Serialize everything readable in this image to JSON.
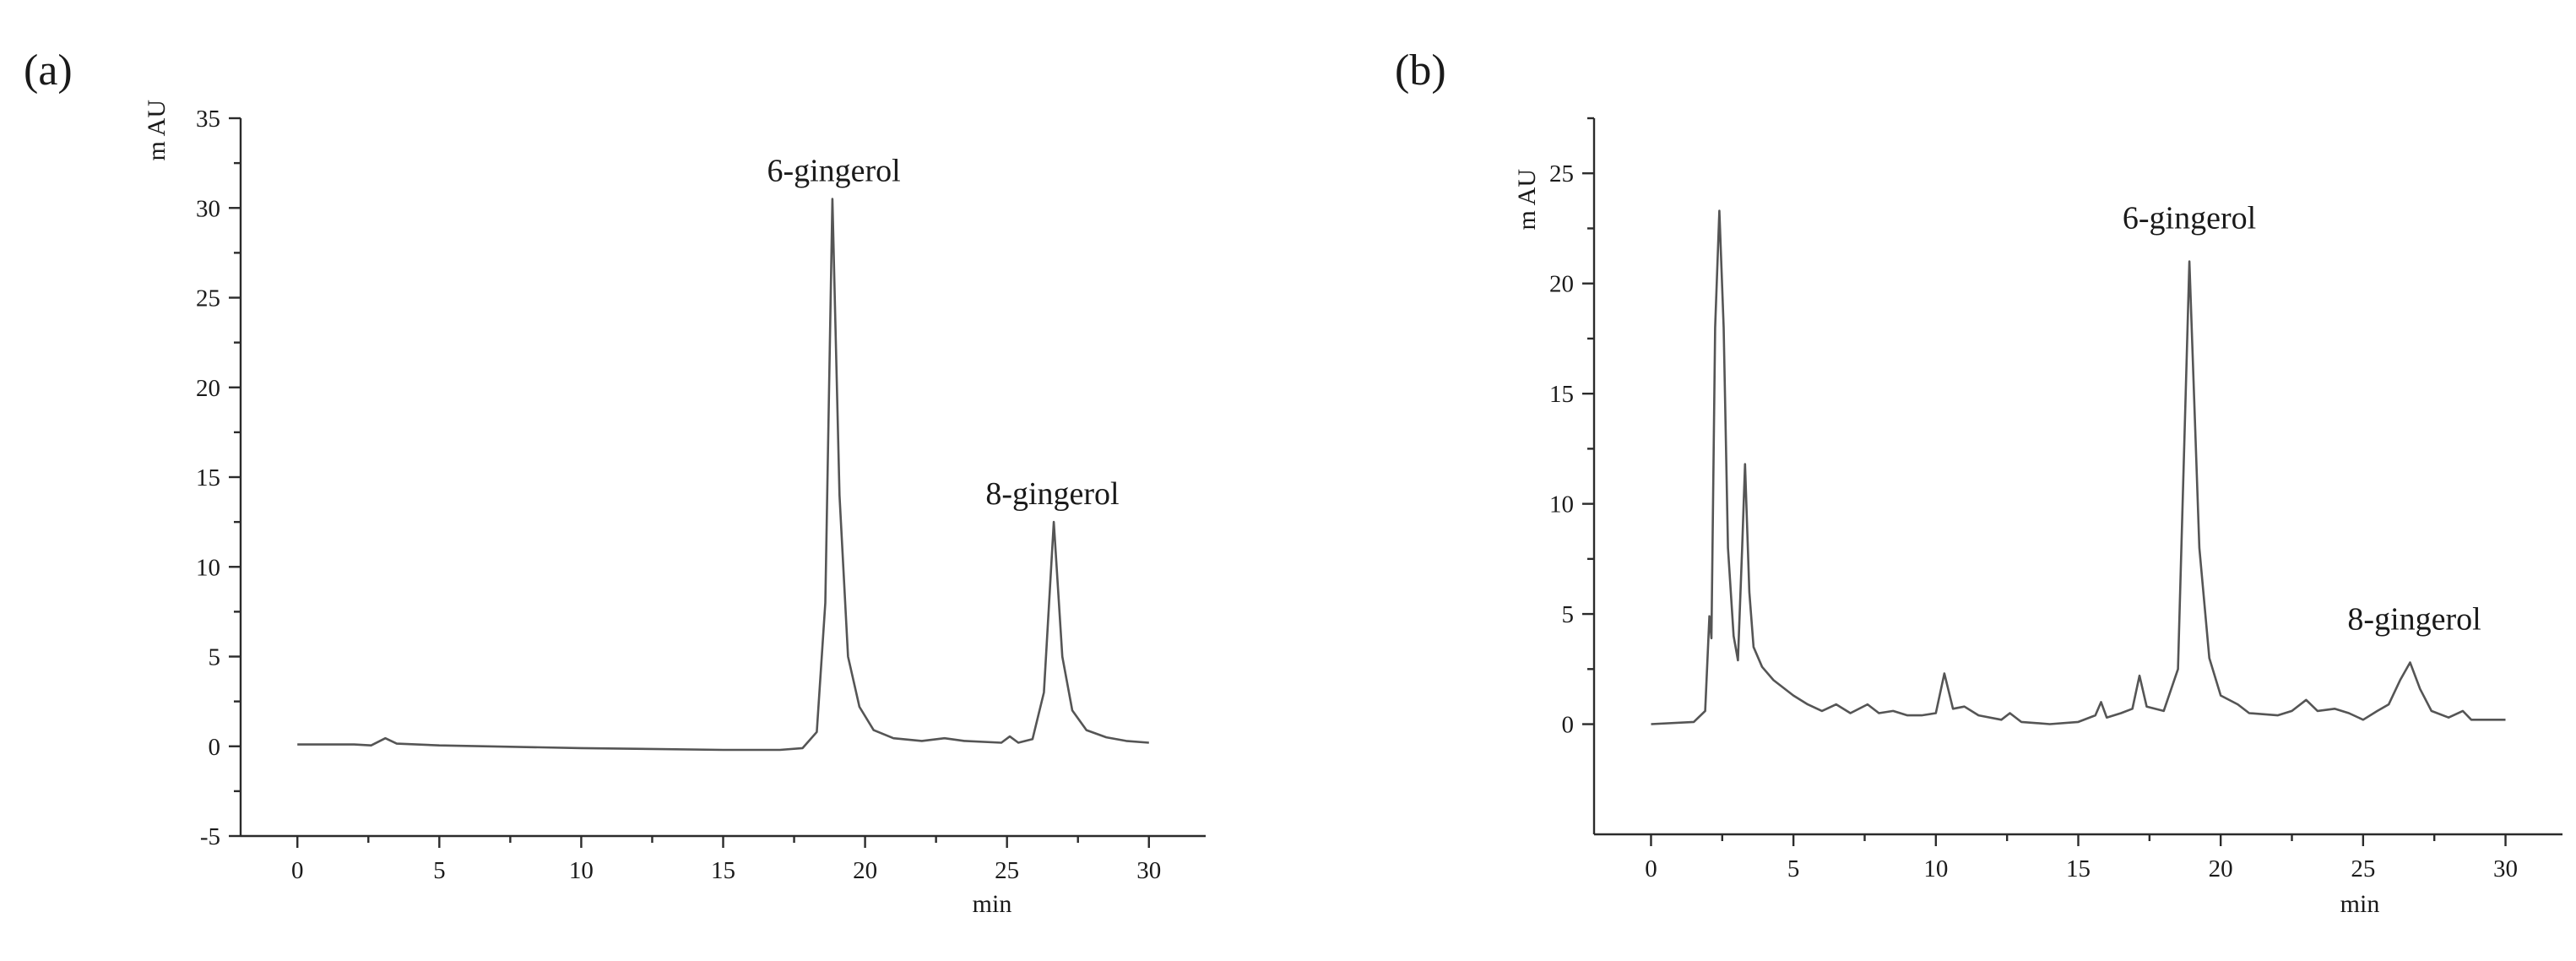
{
  "chart_data": [
    {
      "type": "line",
      "panel_label": "(a)",
      "xlabel": "min",
      "ylabel": "m AU",
      "xlim": [
        -2,
        32
      ],
      "ylim": [
        -5,
        35
      ],
      "xticks": [
        0,
        5,
        10,
        15,
        20,
        25,
        30
      ],
      "yticks": [
        -5,
        0,
        5,
        10,
        15,
        20,
        25,
        30,
        35
      ],
      "grid": false,
      "series": [
        {
          "points": [
            [
              0,
              0.1
            ],
            [
              2,
              0.1
            ],
            [
              2.6,
              0.05
            ],
            [
              3.1,
              0.45
            ],
            [
              3.5,
              0.15
            ],
            [
              5,
              0.05
            ],
            [
              10,
              -0.1
            ],
            [
              15,
              -0.2
            ],
            [
              17,
              -0.2
            ],
            [
              17.8,
              -0.1
            ],
            [
              18.3,
              0.8
            ],
            [
              18.6,
              8
            ],
            [
              18.85,
              30.5
            ],
            [
              19.1,
              14
            ],
            [
              19.4,
              5
            ],
            [
              19.8,
              2.2
            ],
            [
              20.3,
              0.9
            ],
            [
              21,
              0.45
            ],
            [
              22,
              0.3
            ],
            [
              22.8,
              0.45
            ],
            [
              23.5,
              0.3
            ],
            [
              24.8,
              0.2
            ],
            [
              25.1,
              0.55
            ],
            [
              25.4,
              0.2
            ],
            [
              25.9,
              0.4
            ],
            [
              26.3,
              3
            ],
            [
              26.65,
              12.5
            ],
            [
              26.95,
              5
            ],
            [
              27.3,
              2
            ],
            [
              27.8,
              0.9
            ],
            [
              28.5,
              0.5
            ],
            [
              29.2,
              0.3
            ],
            [
              30,
              0.2
            ]
          ]
        }
      ],
      "annotations": [
        {
          "text": "6-gingerol",
          "x": 18.9,
          "y": 31.5
        },
        {
          "text": "8-gingerol",
          "x": 26.6,
          "y": 13.5
        }
      ]
    },
    {
      "type": "line",
      "panel_label": "(b)",
      "xlabel": "min",
      "ylabel": "m AU",
      "xlim": [
        -2,
        32
      ],
      "ylim": [
        -5,
        27.5
      ],
      "xticks": [
        0,
        5,
        10,
        15,
        20,
        25,
        30
      ],
      "yticks": [
        0,
        5,
        10,
        15,
        20,
        25
      ],
      "grid": false,
      "series": [
        {
          "points": [
            [
              0,
              0
            ],
            [
              1.5,
              0.1
            ],
            [
              1.9,
              0.6
            ],
            [
              2.05,
              4.9
            ],
            [
              2.12,
              3.9
            ],
            [
              2.25,
              18
            ],
            [
              2.4,
              23.3
            ],
            [
              2.55,
              18
            ],
            [
              2.7,
              8
            ],
            [
              2.9,
              4
            ],
            [
              3.05,
              2.9
            ],
            [
              3.2,
              8
            ],
            [
              3.3,
              11.8
            ],
            [
              3.45,
              6
            ],
            [
              3.6,
              3.5
            ],
            [
              3.9,
              2.6
            ],
            [
              4.3,
              2
            ],
            [
              5,
              1.3
            ],
            [
              5.5,
              0.9
            ],
            [
              6,
              0.6
            ],
            [
              6.5,
              0.9
            ],
            [
              7,
              0.5
            ],
            [
              7.6,
              0.9
            ],
            [
              8,
              0.5
            ],
            [
              8.5,
              0.6
            ],
            [
              9,
              0.4
            ],
            [
              9.5,
              0.4
            ],
            [
              10.0,
              0.5
            ],
            [
              10.3,
              2.3
            ],
            [
              10.6,
              0.7
            ],
            [
              11,
              0.8
            ],
            [
              11.5,
              0.4
            ],
            [
              12.3,
              0.2
            ],
            [
              12.6,
              0.5
            ],
            [
              13,
              0.1
            ],
            [
              14,
              0
            ],
            [
              15,
              0.1
            ],
            [
              15.6,
              0.4
            ],
            [
              15.8,
              1
            ],
            [
              16.0,
              0.3
            ],
            [
              16.5,
              0.5
            ],
            [
              16.9,
              0.7
            ],
            [
              17.15,
              2.2
            ],
            [
              17.4,
              0.8
            ],
            [
              18,
              0.6
            ],
            [
              18.5,
              2.5
            ],
            [
              18.9,
              21
            ],
            [
              19.25,
              8
            ],
            [
              19.6,
              3
            ],
            [
              20,
              1.3
            ],
            [
              20.6,
              0.9
            ],
            [
              21,
              0.5
            ],
            [
              22,
              0.4
            ],
            [
              22.5,
              0.6
            ],
            [
              23,
              1.1
            ],
            [
              23.4,
              0.6
            ],
            [
              24,
              0.7
            ],
            [
              24.5,
              0.5
            ],
            [
              25,
              0.2
            ],
            [
              25.5,
              0.6
            ],
            [
              25.9,
              0.9
            ],
            [
              26.3,
              2
            ],
            [
              26.65,
              2.8
            ],
            [
              27,
              1.6
            ],
            [
              27.4,
              0.6
            ],
            [
              28,
              0.3
            ],
            [
              28.5,
              0.6
            ],
            [
              28.8,
              0.2
            ],
            [
              29.3,
              0.2
            ],
            [
              30,
              0.2
            ]
          ]
        }
      ],
      "annotations": [
        {
          "text": "6-gingerol",
          "x": 18.9,
          "y": 22.5
        },
        {
          "text": "8-gingerol",
          "x": 26.8,
          "y": 4.3
        }
      ]
    }
  ]
}
